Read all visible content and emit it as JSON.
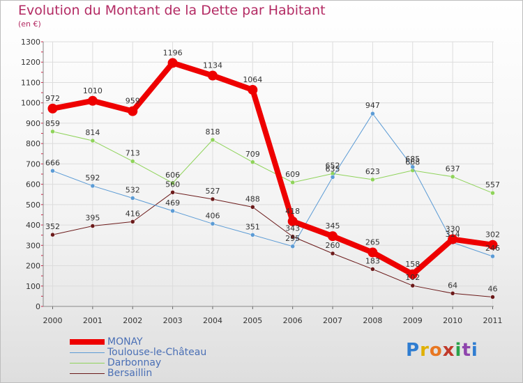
{
  "header": {
    "title": "Evolution du Montant de la Dette par Habitant",
    "subtitle": "(en €)"
  },
  "logo": {
    "text": "Proxiti"
  },
  "chart_data": {
    "type": "line",
    "title": "Evolution du Montant de la Dette par Habitant",
    "subtitle": "(en €)",
    "xlabel": "",
    "ylabel": "",
    "ylim": [
      0,
      1300
    ],
    "yticks": [
      0,
      100,
      200,
      300,
      400,
      500,
      600,
      700,
      800,
      900,
      1000,
      1100,
      1200,
      1300
    ],
    "categories": [
      "2000",
      "2001",
      "2002",
      "2003",
      "2004",
      "2005",
      "2006",
      "2007",
      "2008",
      "2009",
      "2010",
      "2011"
    ],
    "grid": true,
    "legend_position": "bottom-left",
    "series": [
      {
        "name": "Bersaillin",
        "color": "#6b1a1a",
        "line_width": 1,
        "marker": 3,
        "values": [
          352,
          395,
          416,
          560,
          527,
          488,
          343,
          260,
          183,
          102,
          64,
          46
        ],
        "labels": [
          "352",
          "395",
          "416",
          "560",
          "527",
          "488",
          "343",
          "260",
          "183",
          "102",
          "64",
          "46"
        ]
      },
      {
        "name": "Darbonnay",
        "color": "#8fd35a",
        "line_width": 1,
        "marker": 3,
        "values": [
          859,
          814,
          713,
          606,
          818,
          709,
          609,
          652,
          623,
          668,
          637,
          557
        ],
        "labels": [
          "859",
          "814",
          "713",
          "606",
          "818",
          "709",
          "609",
          "652",
          "623",
          "668",
          "637",
          "557"
        ]
      },
      {
        "name": "Toulouse-le-Château",
        "color": "#5b9bd5",
        "line_width": 1,
        "marker": 3,
        "values": [
          666,
          592,
          532,
          469,
          406,
          351,
          295,
          635,
          947,
          685,
          314,
          246
        ],
        "labels": [
          "666",
          "592",
          "532",
          "469",
          "406",
          "351",
          "295",
          "635",
          "947",
          "685",
          "314",
          "246"
        ]
      },
      {
        "name": "MONAY",
        "color": "#ee0000",
        "line_width": 8,
        "marker": 7,
        "values": [
          972,
          1010,
          959,
          1196,
          1134,
          1064,
          418,
          345,
          265,
          158,
          330,
          302
        ],
        "labels": [
          "972",
          "1010",
          "959",
          "1196",
          "1134",
          "1064",
          "418",
          "345",
          "265",
          "158",
          "330",
          "302"
        ]
      }
    ],
    "legend": [
      "MONAY",
      "Toulouse-le-Château",
      "Darbonnay",
      "Bersaillin"
    ]
  }
}
